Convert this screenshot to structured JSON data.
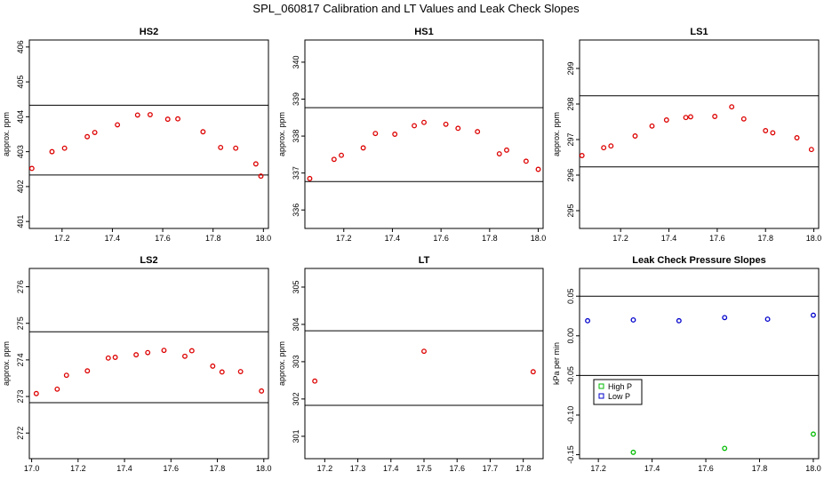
{
  "title": "SPL_060817  Calibration and LT Values and Leak Check Slopes",
  "colors": {
    "calib_point": "#dd0000",
    "high_p": "#00bb00",
    "low_p": "#0000cc",
    "axis": "#000000"
  },
  "chart_data": [
    {
      "id": "hs2",
      "type": "scatter",
      "title": "HS2",
      "ylabel": "approx. ppm",
      "xlim": [
        17.07,
        18.02
      ],
      "ylim": [
        400.8,
        406.2
      ],
      "xticks": [
        "17.2",
        "17.4",
        "17.6",
        "17.8",
        "18.0"
      ],
      "yticks": [
        "401",
        "402",
        "403",
        "404",
        "405",
        "406"
      ],
      "hlines": [
        402.33,
        404.33
      ],
      "x": [
        17.08,
        17.16,
        17.21,
        17.3,
        17.33,
        17.42,
        17.5,
        17.55,
        17.62,
        17.66,
        17.76,
        17.83,
        17.89,
        17.97,
        17.99
      ],
      "y": [
        402.52,
        403.0,
        403.1,
        403.43,
        403.55,
        403.77,
        404.05,
        404.06,
        403.93,
        403.94,
        403.57,
        403.12,
        403.1,
        402.65,
        402.3
      ]
    },
    {
      "id": "hs1",
      "type": "scatter",
      "title": "HS1",
      "ylabel": "approx. ppm",
      "xlim": [
        17.04,
        18.02
      ],
      "ylim": [
        335.5,
        340.6
      ],
      "xticks": [
        "17.2",
        "17.4",
        "17.6",
        "17.8",
        "18.0"
      ],
      "yticks": [
        "336",
        "337",
        "338",
        "339",
        "340"
      ],
      "hlines": [
        336.77,
        338.77
      ],
      "x": [
        17.06,
        17.16,
        17.19,
        17.28,
        17.33,
        17.41,
        17.49,
        17.53,
        17.62,
        17.67,
        17.75,
        17.84,
        17.87,
        17.95,
        18.0
      ],
      "y": [
        336.85,
        337.37,
        337.48,
        337.68,
        338.07,
        338.05,
        338.28,
        338.37,
        338.32,
        338.21,
        338.12,
        337.52,
        337.62,
        337.32,
        337.1
      ]
    },
    {
      "id": "ls1",
      "type": "scatter",
      "title": "LS1",
      "ylabel": "approx. ppm",
      "xlim": [
        17.03,
        18.02
      ],
      "ylim": [
        294.5,
        299.8
      ],
      "xticks": [
        "17.2",
        "17.4",
        "17.6",
        "17.8",
        "18.0"
      ],
      "yticks": [
        "295",
        "296",
        "297",
        "298",
        "299"
      ],
      "hlines": [
        296.23,
        298.23
      ],
      "x": [
        17.04,
        17.13,
        17.16,
        17.26,
        17.33,
        17.39,
        17.47,
        17.49,
        17.59,
        17.66,
        17.71,
        17.8,
        17.83,
        17.93,
        17.99
      ],
      "y": [
        296.55,
        296.77,
        296.82,
        297.1,
        297.38,
        297.55,
        297.62,
        297.64,
        297.65,
        297.92,
        297.58,
        297.25,
        297.19,
        297.05,
        296.72
      ]
    },
    {
      "id": "ls2",
      "type": "scatter",
      "title": "LS2",
      "ylabel": "approx. ppm",
      "xlim": [
        16.99,
        18.02
      ],
      "ylim": [
        271.3,
        276.5
      ],
      "xticks": [
        "17.0",
        "17.2",
        "17.4",
        "17.6",
        "17.8",
        "18.0"
      ],
      "yticks": [
        "272",
        "273",
        "274",
        "275",
        "276"
      ],
      "hlines": [
        272.83,
        274.77
      ],
      "x": [
        17.02,
        17.11,
        17.15,
        17.24,
        17.33,
        17.36,
        17.45,
        17.5,
        17.57,
        17.66,
        17.69,
        17.78,
        17.82,
        17.9,
        17.99
      ],
      "y": [
        273.08,
        273.2,
        273.58,
        273.7,
        274.05,
        274.07,
        274.14,
        274.2,
        274.26,
        274.1,
        274.25,
        273.83,
        273.67,
        273.68,
        273.15
      ]
    },
    {
      "id": "lt",
      "type": "scatter",
      "title": "LT",
      "ylabel": "approx. ppm",
      "xlim": [
        17.14,
        17.86
      ],
      "ylim": [
        300.4,
        305.5
      ],
      "xticks": [
        "17.2",
        "17.3",
        "17.4",
        "17.5",
        "17.6",
        "17.7",
        "17.8"
      ],
      "yticks": [
        "301",
        "302",
        "303",
        "304",
        "305"
      ],
      "hlines": [
        301.83,
        303.83
      ],
      "x": [
        17.17,
        17.5,
        17.83
      ],
      "y": [
        302.48,
        303.28,
        302.73
      ]
    },
    {
      "id": "leak",
      "type": "scatter",
      "title": "Leak Check Pressure Slopes",
      "ylabel": "kPa per min",
      "xlim": [
        17.13,
        18.02
      ],
      "ylim": [
        -0.155,
        0.085
      ],
      "xticks": [
        "17.2",
        "17.4",
        "17.6",
        "17.8",
        "18.0"
      ],
      "yticks": [
        "-0.15",
        "-0.10",
        "-0.05",
        "0.00",
        "0.05"
      ],
      "hlines": [
        0.05,
        -0.05
      ],
      "legend": {
        "position": "bottom-left",
        "entries": [
          "High P",
          "Low P"
        ]
      },
      "series": [
        {
          "name": "High P",
          "x": [
            17.33,
            17.67,
            18.0
          ],
          "y": [
            -0.147,
            -0.142,
            -0.124
          ]
        },
        {
          "name": "Low P",
          "x": [
            17.16,
            17.33,
            17.5,
            17.67,
            17.83,
            18.0
          ],
          "y": [
            0.019,
            0.02,
            0.019,
            0.023,
            0.021,
            0.026
          ]
        }
      ]
    }
  ]
}
